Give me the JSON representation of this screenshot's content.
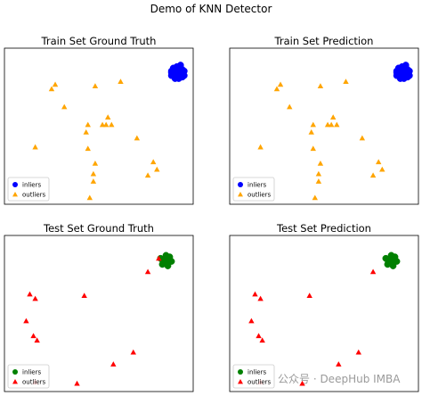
{
  "figure": {
    "suptitle": "Demo of KNN Detector",
    "watermark": "公众号 · DeepHub IMBA"
  },
  "colors": {
    "train_inlier": "#0000ff",
    "train_outlier": "#ffa500",
    "test_inlier": "#008000",
    "test_outlier": "#ff0000"
  },
  "chart_data": [
    {
      "type": "scatter",
      "title": "Train Set Ground Truth",
      "xlim": [
        0,
        100
      ],
      "ylim": [
        0,
        100
      ],
      "grid": false,
      "ticks": false,
      "legend": {
        "position": "bottom-left",
        "entries": [
          "inliers",
          "outliers"
        ]
      },
      "series": [
        {
          "name": "inliers",
          "marker": "circle",
          "color": "#0000ff",
          "points": [
            [
              92,
              86
            ],
            [
              94,
              88
            ],
            [
              95,
              85
            ],
            [
              91,
              84
            ],
            [
              93,
              83
            ],
            [
              96,
              87
            ],
            [
              90,
              87
            ],
            [
              94,
              82
            ],
            [
              93,
              90
            ],
            [
              97,
              84
            ],
            [
              92,
              89
            ],
            [
              95,
              89
            ],
            [
              91,
              86
            ],
            [
              96,
              83
            ],
            [
              93,
              85
            ],
            [
              90,
              84
            ],
            [
              94,
              86
            ],
            [
              92,
              82
            ],
            [
              97,
              87
            ],
            [
              95,
              91
            ],
            [
              91,
              89
            ],
            [
              94,
              84
            ],
            [
              96,
              85
            ],
            [
              92,
              87
            ],
            [
              93,
              88
            ],
            [
              90,
              86
            ],
            [
              95,
              83
            ],
            [
              92,
              84
            ],
            [
              94,
              89
            ],
            [
              96,
              88
            ]
          ]
        },
        {
          "name": "outliers",
          "marker": "triangle",
          "color": "#ffa500",
          "points": [
            [
              24,
              75
            ],
            [
              26,
              78
            ],
            [
              48,
              77
            ],
            [
              62,
              80
            ],
            [
              31,
              63
            ],
            [
              52,
              51
            ],
            [
              54,
              51
            ],
            [
              55,
              56
            ],
            [
              57,
              51
            ],
            [
              43,
              46
            ],
            [
              44,
              51
            ],
            [
              71,
              42
            ],
            [
              15,
              36
            ],
            [
              44,
              35
            ],
            [
              80,
              26
            ],
            [
              48,
              25
            ],
            [
              82,
              21
            ],
            [
              47,
              18
            ],
            [
              47,
              13
            ],
            [
              77,
              17
            ],
            [
              45,
              2
            ]
          ]
        }
      ]
    },
    {
      "type": "scatter",
      "title": "Train Set Prediction",
      "xlim": [
        0,
        100
      ],
      "ylim": [
        0,
        100
      ],
      "grid": false,
      "ticks": false,
      "legend": {
        "position": "bottom-left",
        "entries": [
          "inliers",
          "outliers"
        ]
      },
      "series": [
        {
          "name": "inliers",
          "marker": "circle",
          "color": "#0000ff",
          "points": [
            [
              92,
              86
            ],
            [
              94,
              88
            ],
            [
              95,
              85
            ],
            [
              91,
              84
            ],
            [
              93,
              83
            ],
            [
              96,
              87
            ],
            [
              90,
              87
            ],
            [
              94,
              82
            ],
            [
              93,
              90
            ],
            [
              97,
              84
            ],
            [
              92,
              89
            ],
            [
              95,
              89
            ],
            [
              91,
              86
            ],
            [
              96,
              83
            ],
            [
              93,
              85
            ],
            [
              90,
              84
            ],
            [
              94,
              86
            ],
            [
              92,
              82
            ],
            [
              97,
              87
            ],
            [
              95,
              91
            ],
            [
              91,
              89
            ],
            [
              94,
              84
            ],
            [
              96,
              85
            ],
            [
              92,
              87
            ],
            [
              93,
              88
            ],
            [
              90,
              86
            ],
            [
              95,
              83
            ],
            [
              92,
              84
            ],
            [
              94,
              89
            ],
            [
              96,
              88
            ]
          ]
        },
        {
          "name": "outliers",
          "marker": "triangle",
          "color": "#ffa500",
          "points": [
            [
              24,
              75
            ],
            [
              26,
              78
            ],
            [
              48,
              77
            ],
            [
              62,
              80
            ],
            [
              31,
              63
            ],
            [
              52,
              51
            ],
            [
              54,
              51
            ],
            [
              55,
              56
            ],
            [
              57,
              51
            ],
            [
              43,
              46
            ],
            [
              44,
              51
            ],
            [
              71,
              42
            ],
            [
              15,
              36
            ],
            [
              44,
              35
            ],
            [
              80,
              26
            ],
            [
              48,
              25
            ],
            [
              82,
              21
            ],
            [
              47,
              18
            ],
            [
              47,
              13
            ],
            [
              77,
              17
            ],
            [
              45,
              2
            ]
          ]
        }
      ]
    },
    {
      "type": "scatter",
      "title": "Test Set Ground Truth",
      "xlim": [
        0,
        100
      ],
      "ylim": [
        0,
        100
      ],
      "grid": false,
      "ticks": false,
      "legend": {
        "position": "bottom-left",
        "entries": [
          "inliers",
          "outliers"
        ]
      },
      "series": [
        {
          "name": "inliers",
          "marker": "circle",
          "color": "#008000",
          "points": [
            [
              85,
              86
            ],
            [
              87,
              87
            ],
            [
              89,
              86
            ],
            [
              86,
              84
            ],
            [
              88,
              84
            ],
            [
              84,
              87
            ],
            [
              87,
              89
            ],
            [
              90,
              85
            ],
            [
              86,
              86
            ],
            [
              88,
              82
            ],
            [
              85,
              83
            ],
            [
              89,
              88
            ]
          ]
        },
        {
          "name": "outliers",
          "marker": "triangle",
          "color": "#ff0000",
          "points": [
            [
              83,
              87
            ],
            [
              77,
              78
            ],
            [
              12,
              63
            ],
            [
              15,
              60
            ],
            [
              42,
              62
            ],
            [
              10,
              45
            ],
            [
              14,
              35
            ],
            [
              16,
              32
            ],
            [
              69,
              24
            ],
            [
              58,
              16
            ],
            [
              15,
              4
            ],
            [
              38,
              3
            ]
          ]
        }
      ]
    },
    {
      "type": "scatter",
      "title": "Test Set Prediction",
      "xlim": [
        0,
        100
      ],
      "ylim": [
        0,
        100
      ],
      "grid": false,
      "ticks": false,
      "legend": {
        "position": "bottom-left",
        "entries": [
          "inliers",
          "outliers"
        ]
      },
      "series": [
        {
          "name": "inliers",
          "marker": "circle",
          "color": "#008000",
          "points": [
            [
              85,
              86
            ],
            [
              87,
              87
            ],
            [
              89,
              86
            ],
            [
              86,
              84
            ],
            [
              88,
              84
            ],
            [
              84,
              87
            ],
            [
              87,
              89
            ],
            [
              90,
              85
            ],
            [
              86,
              86
            ],
            [
              88,
              82
            ],
            [
              85,
              83
            ],
            [
              89,
              88
            ]
          ]
        },
        {
          "name": "outliers",
          "marker": "triangle",
          "color": "#ff0000",
          "points": [
            [
              77,
              78
            ],
            [
              12,
              63
            ],
            [
              15,
              60
            ],
            [
              42,
              62
            ],
            [
              10,
              45
            ],
            [
              14,
              35
            ],
            [
              16,
              32
            ],
            [
              69,
              24
            ],
            [
              58,
              16
            ],
            [
              15,
              4
            ],
            [
              38,
              3
            ]
          ]
        }
      ]
    }
  ]
}
